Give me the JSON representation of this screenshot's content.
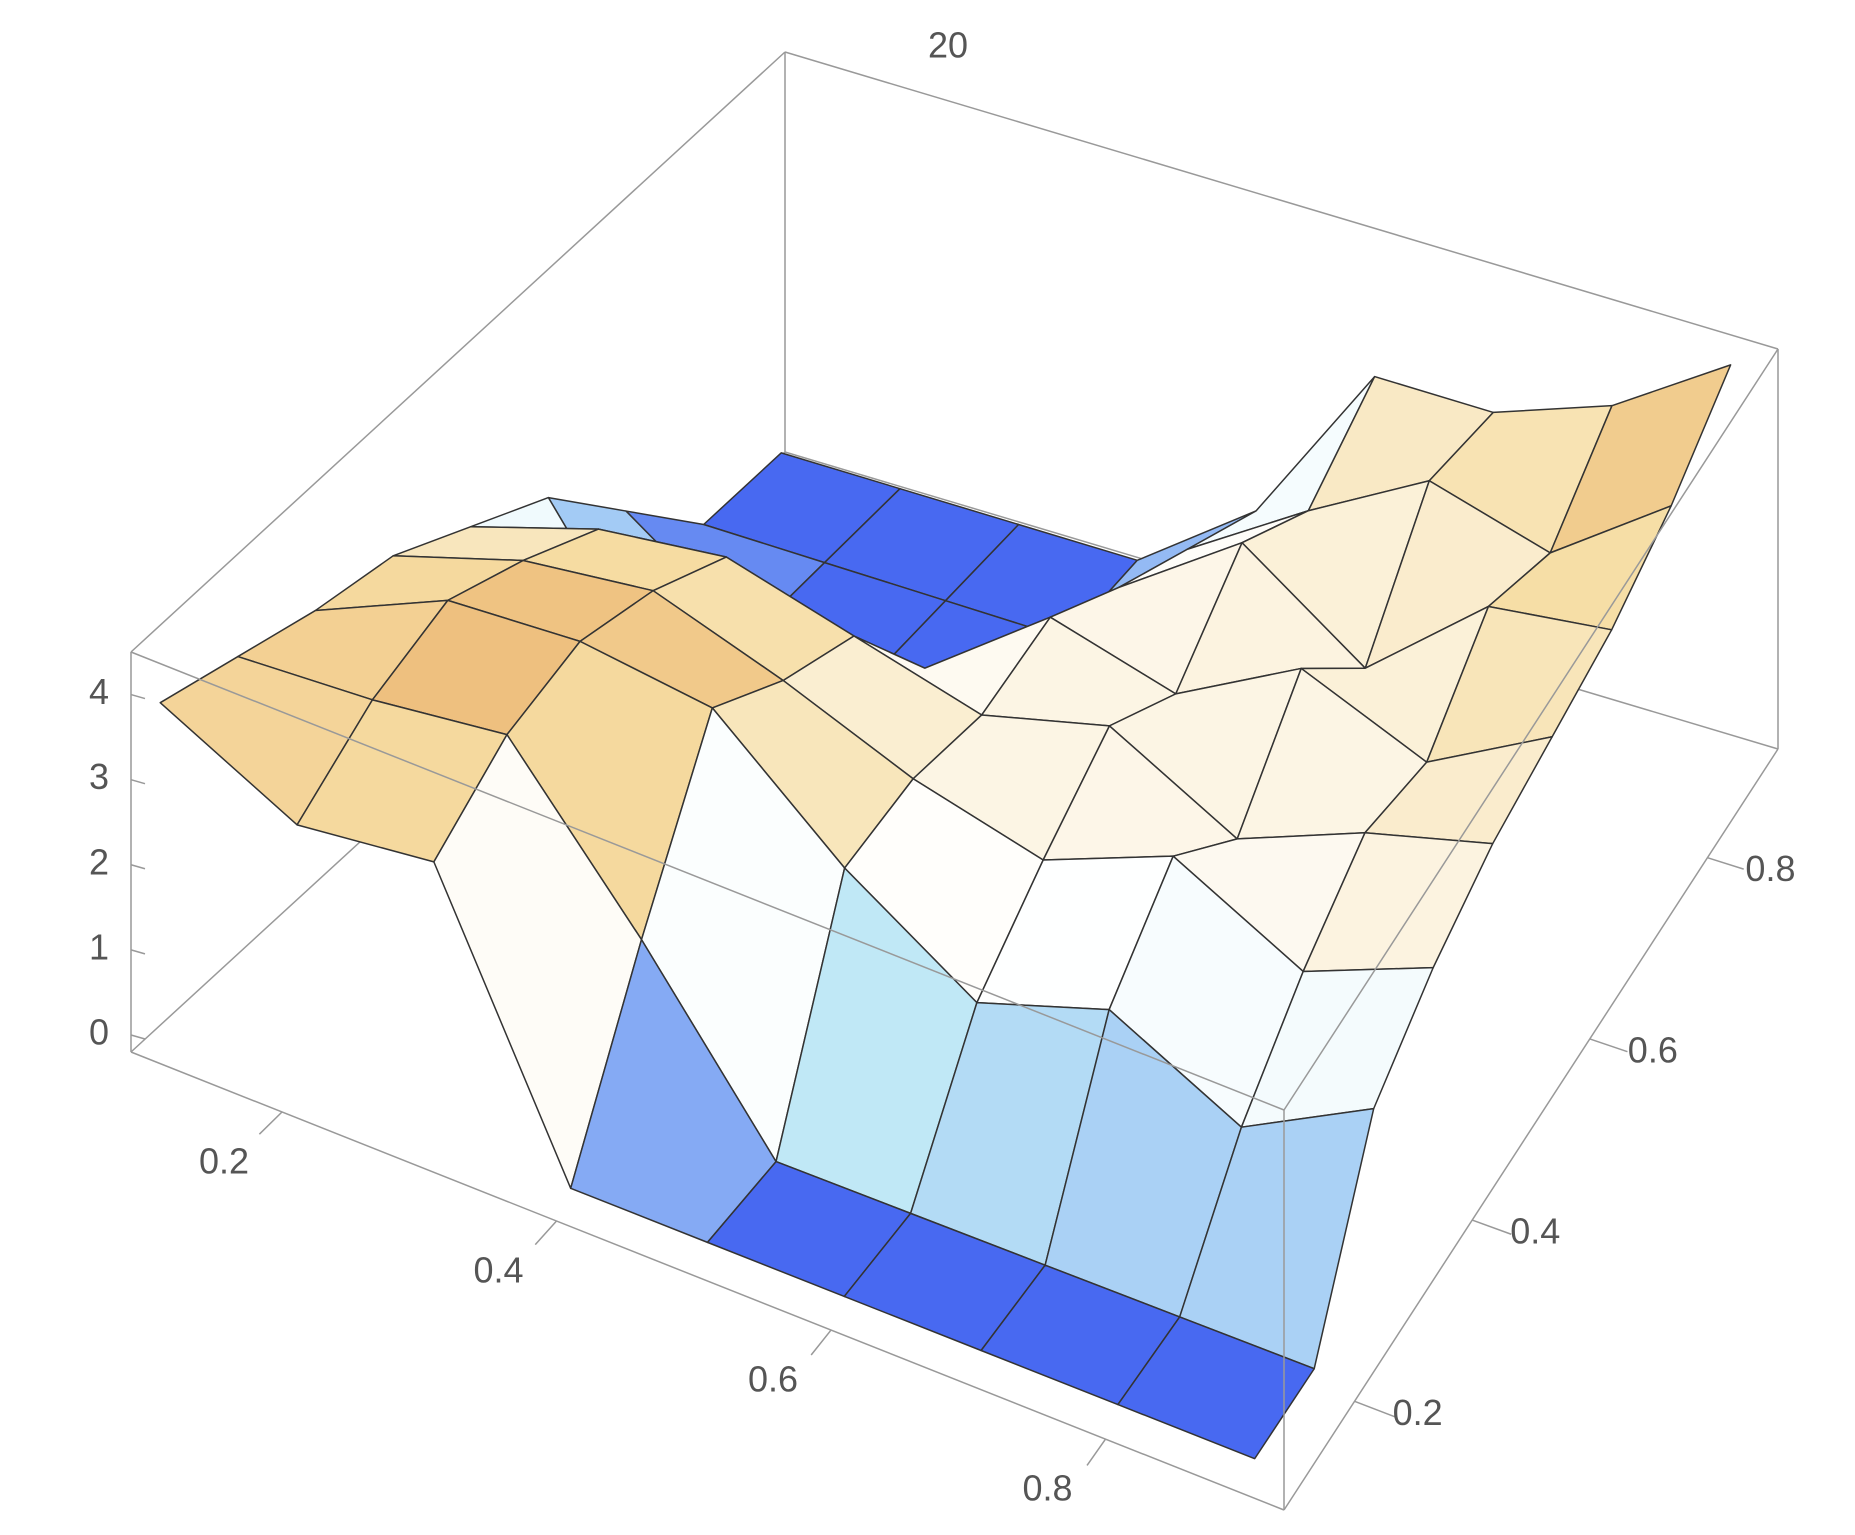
{
  "chart_data": {
    "type": "surface",
    "title": "20",
    "x": [
      0.1,
      0.2,
      0.3,
      0.4,
      0.5,
      0.6,
      0.7,
      0.8,
      0.9
    ],
    "y": [
      0.1,
      0.2,
      0.3,
      0.4,
      0.5,
      0.6,
      0.7,
      0.8,
      0.9
    ],
    "z": [
      [
        3.8,
        3.0,
        3.2,
        0,
        0,
        0,
        0,
        0,
        0
      ],
      [
        3.5,
        3.6,
        3.8,
        2.0,
        0,
        0,
        0,
        0,
        0
      ],
      [
        3.2,
        3.9,
        4.0,
        3.8,
        2.5,
        1.5,
        2.0,
        1.2,
        2.0
      ],
      [
        3.0,
        3.5,
        3.7,
        3.2,
        2.6,
        2.2,
        2.8,
        2.0,
        2.6
      ],
      [
        2.5,
        3.0,
        3.2,
        2.8,
        2.4,
        2.8,
        2.0,
        2.6,
        3.0
      ],
      [
        2.0,
        0,
        0,
        1.5,
        2.6,
        2.2,
        3.0,
        2.4,
        3.2
      ],
      [
        1.0,
        0,
        0,
        0,
        2.0,
        3.0,
        2.0,
        3.2,
        3.4
      ],
      [
        0,
        0,
        0,
        0,
        1.5,
        2.4,
        3.2,
        2.8,
        3.8
      ],
      [
        0,
        0,
        0,
        0,
        1.0,
        3.0,
        3.0,
        3.5,
        4.4
      ]
    ],
    "xlim": [
      0.09,
      0.93
    ],
    "ylim": [
      0.08,
      0.92
    ],
    "zlim": [
      -0.2,
      4.5
    ],
    "xticks": [
      0.2,
      0.4,
      0.6,
      0.8
    ],
    "yticks": [
      0.2,
      0.4,
      0.6,
      0.8
    ],
    "zticks": [
      0,
      1,
      2,
      3,
      4
    ],
    "colors": [
      "#2f4ff0",
      "#bfe8f6",
      "#ffffff",
      "#f6dda4",
      "#e49a4c"
    ]
  }
}
